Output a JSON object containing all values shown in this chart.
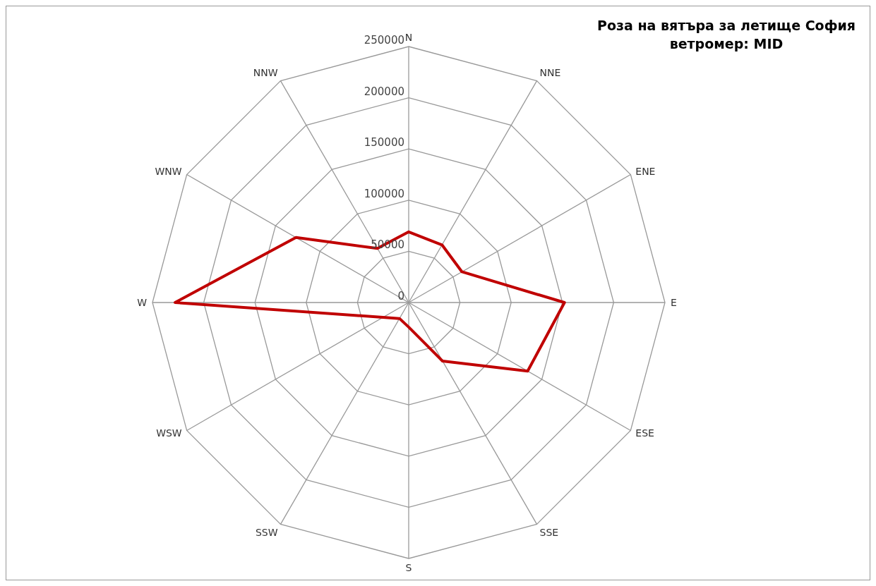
{
  "chart_data": {
    "type": "radar",
    "title": "Роза на вятъра за летище София",
    "subtitle": "ветромер: MID",
    "categories": [
      "N",
      "NNE",
      "ENE",
      "E",
      "ESE",
      "SSE",
      "S",
      "SSW",
      "WSW",
      "W",
      "WNW",
      "NNW"
    ],
    "series": [
      {
        "color": "#c00000",
        "values": [
          69000,
          65000,
          60000,
          152000,
          134000,
          66000,
          24000,
          18000,
          29000,
          228000,
          127000,
          61000
        ]
      }
    ],
    "ylim": [
      0,
      250000
    ],
    "yticks": [
      0,
      50000,
      100000,
      150000,
      200000,
      250000
    ],
    "grid": true,
    "legend": false,
    "marker": "none"
  }
}
